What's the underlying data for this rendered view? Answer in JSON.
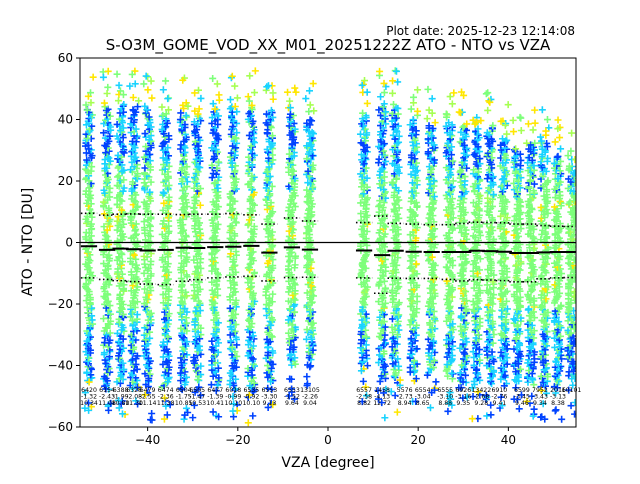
{
  "chart_data": {
    "type": "scatter",
    "plot_date": "Plot date: 2025-12-23 12:14:08",
    "title": "S-O3M_GOME_VOD_XX_M01_20251222Z ATO - NTO vs VZA",
    "xlabel": "VZA [degree]",
    "ylabel": "ATO - NTO [DU]",
    "xlim": [
      -55,
      55
    ],
    "ylim": [
      -60,
      60
    ],
    "xticks": [
      -40,
      -20,
      0,
      20,
      40
    ],
    "yticks": [
      -60,
      -40,
      -20,
      0,
      20,
      40,
      60
    ],
    "marker": "+",
    "colors": {
      "dense": "#7dff7a",
      "cyan": "#19d3ff",
      "blue": "#0043ff",
      "yellow": "#ffe600",
      "lightgreen": "#a6ff52",
      "mean_line": "#000000",
      "zero_line": "#000000"
    },
    "columns": [
      {
        "vza": -53,
        "low": -45,
        "high": 43,
        "mean": -1.2,
        "sd_upper": 9.5,
        "sd_lower": -11.5
      },
      {
        "vza": -49,
        "low": -47,
        "high": 44,
        "mean": -2.4,
        "sd_upper": 8.9,
        "sd_lower": -12.0
      },
      {
        "vza": -46,
        "low": -46,
        "high": 45,
        "mean": -2.0,
        "sd_upper": 9.2,
        "sd_lower": -12.4
      },
      {
        "vza": -43,
        "low": -46,
        "high": 44,
        "mean": -2.2,
        "sd_upper": 9.3,
        "sd_lower": -12.7
      },
      {
        "vza": -40,
        "low": -46,
        "high": 44,
        "mean": -2.6,
        "sd_upper": 9.2,
        "sd_lower": -13.5
      },
      {
        "vza": -36,
        "low": -47,
        "high": 42,
        "mean": -2.4,
        "sd_upper": 9.2,
        "sd_lower": -13.7
      },
      {
        "vza": -32,
        "low": -46,
        "high": 42,
        "mean": -1.7,
        "sd_upper": 9.1,
        "sd_lower": -12.6
      },
      {
        "vza": -29,
        "low": -45,
        "high": 41,
        "mean": -1.8,
        "sd_upper": 9.2,
        "sd_lower": -12.1
      },
      {
        "vza": -25,
        "low": -46,
        "high": 43,
        "mean": -1.5,
        "sd_upper": 9.2,
        "sd_lower": -11.5
      },
      {
        "vza": -21,
        "low": -48,
        "high": 44,
        "mean": -1.4,
        "sd_upper": 9.4,
        "sd_lower": -11.2
      },
      {
        "vza": -17,
        "low": -48,
        "high": 44,
        "mean": -1.1,
        "sd_upper": 9.0,
        "sd_lower": -11.0
      },
      {
        "vza": -13,
        "low": -45,
        "high": 43,
        "mean": -3.3,
        "sd_upper": 6.0,
        "sd_lower": -12.5
      },
      {
        "vza": -8,
        "low": -40,
        "high": 42,
        "mean": -1.6,
        "sd_upper": 8.0,
        "sd_lower": -11.4
      },
      {
        "vza": -4,
        "low": -38,
        "high": 40,
        "mean": -2.3,
        "sd_upper": 7.0,
        "sd_lower": -11.3
      },
      {
        "vza": 8,
        "low": -40,
        "high": 42,
        "mean": -2.6,
        "sd_upper": 6.5,
        "sd_lower": -11.5
      },
      {
        "vza": 12,
        "low": -45,
        "high": 45,
        "mean": -4.1,
        "sd_upper": 8.6,
        "sd_lower": -16.5
      },
      {
        "vza": 15,
        "low": -44,
        "high": 44,
        "mean": -2.7,
        "sd_upper": 6.2,
        "sd_lower": -11.6
      },
      {
        "vza": 19,
        "low": -42,
        "high": 40,
        "mean": -3.0,
        "sd_upper": 6.0,
        "sd_lower": -11.7
      },
      {
        "vza": 23,
        "low": -42,
        "high": 38,
        "mean": -3.1,
        "sd_upper": 5.8,
        "sd_lower": -11.7
      },
      {
        "vza": 27,
        "low": -44,
        "high": 39,
        "mean": -3.1,
        "sd_upper": 5.8,
        "sd_lower": -12.0
      },
      {
        "vza": 30,
        "low": -45,
        "high": 38,
        "mean": -3.1,
        "sd_upper": 6.2,
        "sd_lower": -12.5
      },
      {
        "vza": 33,
        "low": -46,
        "high": 37,
        "mean": -2.7,
        "sd_upper": 6.6,
        "sd_lower": -12.1
      },
      {
        "vza": 36,
        "low": -46,
        "high": 38,
        "mean": -2.8,
        "sd_upper": 6.5,
        "sd_lower": -12.2
      },
      {
        "vza": 39,
        "low": -44,
        "high": 34,
        "mean": -3.0,
        "sd_upper": 6.4,
        "sd_lower": -12.4
      },
      {
        "vza": 42,
        "low": -45,
        "high": 30,
        "mean": -3.4,
        "sd_upper": 6.0,
        "sd_lower": -12.8
      },
      {
        "vza": 45,
        "low": -46,
        "high": 32,
        "mean": -3.4,
        "sd_upper": 6.0,
        "sd_lower": -12.8
      },
      {
        "vza": 48,
        "low": -47,
        "high": 33,
        "mean": -3.2,
        "sd_upper": 5.5,
        "sd_lower": -11.8
      },
      {
        "vza": 51,
        "low": -46,
        "high": 28,
        "mean": -3.1,
        "sd_upper": 5.3,
        "sd_lower": -11.5
      },
      {
        "vza": 54,
        "low": -44,
        "high": 25,
        "mean": -3.1,
        "sd_upper": 5.2,
        "sd_lower": -11.4
      }
    ],
    "annotations": [
      {
        "x": -53,
        "counts": "6420",
        "means": "-1.32",
        "sds": "10.34"
      },
      {
        "x": -49,
        "counts": "6154",
        "means": "-2.43",
        "sds": "11.08"
      },
      {
        "x": -46,
        "counts": "6388",
        "means": "-1.99",
        "sds": "10.80"
      },
      {
        "x": -43,
        "counts": "6328",
        "means": "-2.08",
        "sds": "11.30"
      },
      {
        "x": -40,
        "counts": "6479",
        "means": "-2.55",
        "sds": "11.14"
      },
      {
        "x": -36,
        "counts": "6474",
        "means": "-2.36",
        "sds": "11.38"
      },
      {
        "x": -32,
        "counts": "6504",
        "means": "-1.75",
        "sds": "10.85"
      },
      {
        "x": -29,
        "counts": "6505",
        "means": "-1.47",
        "sds": "10.53"
      },
      {
        "x": -25,
        "counts": "6477",
        "means": "-1.39",
        "sds": "10.41"
      },
      {
        "x": -21,
        "counts": "6018",
        "means": "-0.99",
        "sds": "10.10"
      },
      {
        "x": -17,
        "counts": "6535",
        "means": "-0.92",
        "sds": "10.10"
      },
      {
        "x": -13,
        "counts": "6553",
        "means": "-3.30",
        "sds": "9.13"
      },
      {
        "x": -8,
        "counts": "6553",
        "means": "-1.52",
        "sds": "9.64"
      },
      {
        "x": -4,
        "counts": "13105",
        "means": "-2.26",
        "sds": "9.04"
      },
      {
        "x": 8,
        "counts": "6557",
        "means": "-2.58",
        "sds": "8.82"
      },
      {
        "x": 12,
        "counts": "1458",
        "means": "-4.13",
        "sds": "12.72"
      },
      {
        "x": 17,
        "counts": "5576",
        "means": "-2.73",
        "sds": "8.94"
      },
      {
        "x": 21,
        "counts": "6554",
        "means": "-3.04",
        "sds": "8.65"
      },
      {
        "x": 26,
        "counts": "6555",
        "means": "-3.10",
        "sds": "8.88"
      },
      {
        "x": 30,
        "counts": "6926",
        "means": "-3.16",
        "sds": "9.35"
      },
      {
        "x": 34,
        "counts": "13422",
        "means": "-2.68",
        "sds": "9.28"
      },
      {
        "x": 38,
        "counts": "6910",
        "means": "-2.76",
        "sds": "9.41"
      },
      {
        "x": 43,
        "counts": "6599",
        "means": "-3.45",
        "sds": "9.46"
      },
      {
        "x": 47,
        "counts": "7952",
        "means": "-3.43",
        "sds": "9.34"
      },
      {
        "x": 51,
        "counts": "2016",
        "means": "-3.13",
        "sds": "8.38"
      },
      {
        "x": 54,
        "counts": "10101",
        "means": "",
        "sds": ""
      }
    ]
  }
}
